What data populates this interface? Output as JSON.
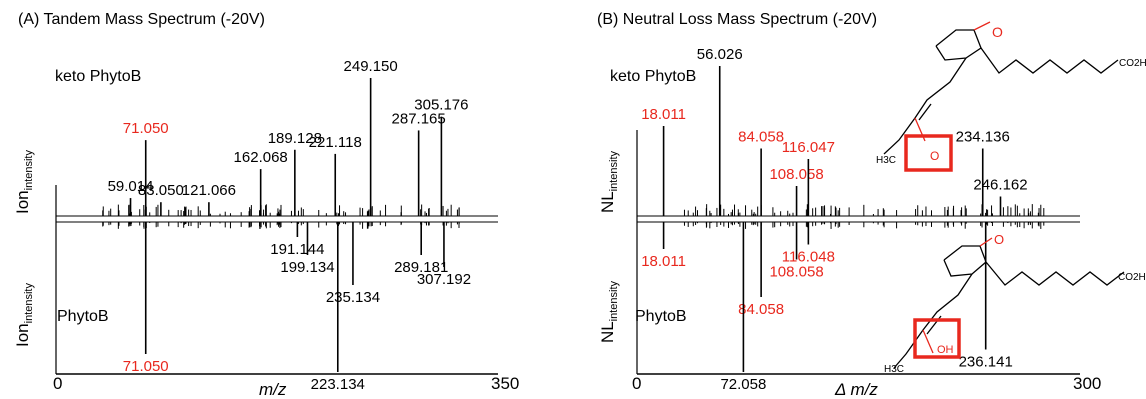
{
  "colors": {
    "highlight": "#e8281e",
    "ink": "#000000"
  },
  "chart_data": [
    {
      "type": "bar",
      "panel": "A",
      "title": "(A) Tandem Mass Spectrum (-20V)",
      "xlabel": "m/z",
      "ylabel_top": {
        "main": "Ion",
        "sub": "intensity"
      },
      "ylabel_bottom": {
        "main": "Ion",
        "sub": "intensity"
      },
      "xlim": [
        0,
        350
      ],
      "xticks": [
        "0",
        "350"
      ],
      "top_label": "keto PhytoB",
      "bottom_label": "PhytoB",
      "top_peaks": [
        {
          "x": 59.014,
          "label": "59.014",
          "i": 0.13,
          "red": false
        },
        {
          "x": 71.05,
          "label": "71.050",
          "i": 0.55,
          "red": true
        },
        {
          "x": 83.05,
          "label": "83.050",
          "i": 0.1,
          "red": false
        },
        {
          "x": 121.066,
          "label": "121.066",
          "i": 0.1,
          "red": false
        },
        {
          "x": 162.068,
          "label": "162.068",
          "i": 0.34,
          "red": false
        },
        {
          "x": 189.128,
          "label": "189.128",
          "i": 0.48,
          "red": false
        },
        {
          "x": 221.118,
          "label": "221.118",
          "i": 0.45,
          "red": false
        },
        {
          "x": 249.15,
          "label": "249.150",
          "i": 1.0,
          "red": false
        },
        {
          "x": 287.165,
          "label": "287.165",
          "i": 0.62,
          "red": false
        },
        {
          "x": 305.176,
          "label": "305.176",
          "i": 0.72,
          "red": false
        }
      ],
      "bottom_peaks": [
        {
          "x": 71.05,
          "label": "71.050",
          "i": 0.88,
          "red": true
        },
        {
          "x": 191.144,
          "label": "191.144",
          "i": 0.1,
          "red": false
        },
        {
          "x": 199.134,
          "label": "199.134",
          "i": 0.22,
          "red": false
        },
        {
          "x": 223.134,
          "label": "223.134",
          "i": 1.0,
          "red": false
        },
        {
          "x": 235.134,
          "label": "235.134",
          "i": 0.42,
          "red": false
        },
        {
          "x": 289.181,
          "label": "289.181",
          "i": 0.22,
          "red": false
        },
        {
          "x": 307.192,
          "label": "307.192",
          "i": 0.3,
          "red": false
        }
      ]
    },
    {
      "type": "bar",
      "panel": "B",
      "title": "(B) Neutral Loss Mass Spectrum (-20V)",
      "xlabel": "Δ m/z",
      "ylabel_top": {
        "main": "NL",
        "sub": "intensity"
      },
      "ylabel_bottom": {
        "main": "NL",
        "sub": "intensity"
      },
      "xlim": [
        0,
        300
      ],
      "xticks": [
        "0",
        "300"
      ],
      "top_label": "keto PhytoB",
      "bottom_label": "PhytoB",
      "top_peaks": [
        {
          "x": 18.011,
          "label": "18.011",
          "i": 0.6,
          "red": true
        },
        {
          "x": 56.026,
          "label": "56.026",
          "i": 1.0,
          "red": false
        },
        {
          "x": 84.058,
          "label": "84.058",
          "i": 0.45,
          "red": true
        },
        {
          "x": 108.058,
          "label": "108.058",
          "i": 0.2,
          "red": true
        },
        {
          "x": 116.047,
          "label": "116.047",
          "i": 0.38,
          "red": true
        },
        {
          "x": 234.136,
          "label": "234.136",
          "i": 0.45,
          "red": false
        },
        {
          "x": 246.162,
          "label": "246.162",
          "i": 0.13,
          "red": false
        }
      ],
      "bottom_peaks": [
        {
          "x": 18.011,
          "label": "18.011",
          "i": 0.18,
          "red": true
        },
        {
          "x": 84.058,
          "label": "84.058",
          "i": 0.5,
          "red": true
        },
        {
          "x": 108.058,
          "label": "108.058",
          "i": 0.25,
          "red": true
        },
        {
          "x": 116.048,
          "label": "116.048",
          "i": 0.15,
          "red": true
        },
        {
          "x": 72.058,
          "label": "72.058",
          "i": 1.0,
          "red": false
        },
        {
          "x": 236.141,
          "label": "236.141",
          "i": 0.85,
          "red": false
        }
      ],
      "structures": {
        "top": {
          "ketone": "O",
          "acid": "CO2H",
          "methyl": "H3C",
          "box_group": "O"
        },
        "bottom": {
          "ketone": "O",
          "acid": "CO2H",
          "methyl": "H3C",
          "box_group": "OH"
        }
      }
    }
  ]
}
